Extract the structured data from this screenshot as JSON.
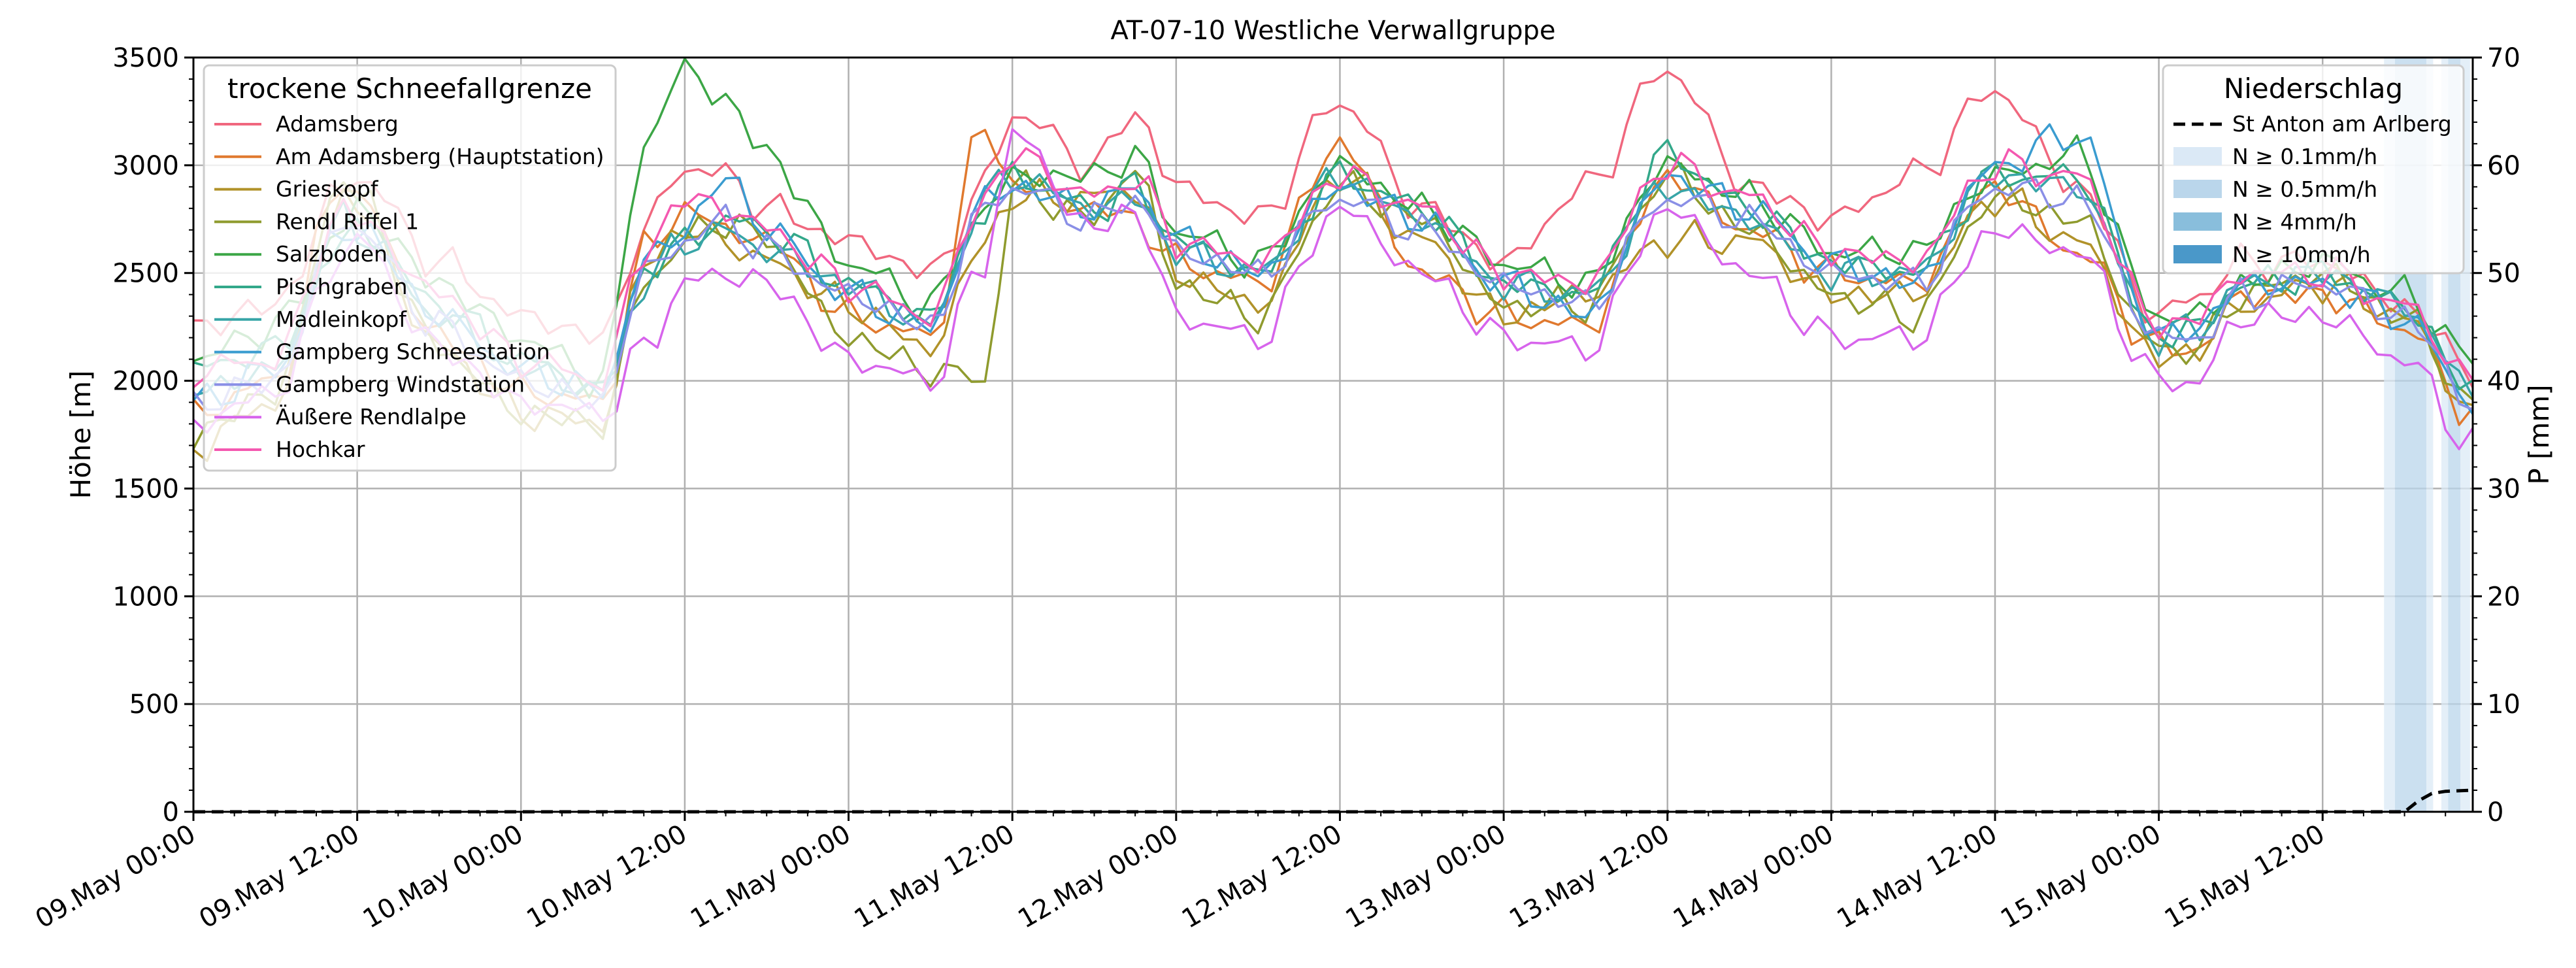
{
  "chart_data": {
    "type": "line",
    "title": "AT-07-10 Westliche Verwallgruppe",
    "ylabel": "Höhe [m]",
    "y2label": "P [mm]",
    "ylim": [
      0,
      3500
    ],
    "y2lim": [
      0,
      70
    ],
    "yticks": [
      0,
      500,
      1000,
      1500,
      2000,
      2500,
      3000,
      3500
    ],
    "y2ticks": [
      0,
      10,
      20,
      30,
      40,
      50,
      60,
      70
    ],
    "xlim_hours": [
      0,
      167
    ],
    "xticks": [
      {
        "h": 0,
        "label": "09.May 00:00"
      },
      {
        "h": 12,
        "label": "09.May 12:00"
      },
      {
        "h": 24,
        "label": "10.May 00:00"
      },
      {
        "h": 36,
        "label": "10.May 12:00"
      },
      {
        "h": 48,
        "label": "11.May 00:00"
      },
      {
        "h": 60,
        "label": "11.May 12:00"
      },
      {
        "h": 72,
        "label": "12.May 00:00"
      },
      {
        "h": 84,
        "label": "12.May 12:00"
      },
      {
        "h": 96,
        "label": "13.May 00:00"
      },
      {
        "h": 108,
        "label": "13.May 12:00"
      },
      {
        "h": 120,
        "label": "14.May 00:00"
      },
      {
        "h": 132,
        "label": "14.May 12:00"
      },
      {
        "h": 144,
        "label": "15.May 00:00"
      },
      {
        "h": 156,
        "label": "15.May 12:00"
      }
    ],
    "grid": true,
    "legend_left": {
      "title": "trockene Schneefallgrenze",
      "placement": "upper-left"
    },
    "legend_right": {
      "title": "Niederschlag",
      "placement": "upper-right",
      "items": [
        {
          "label": "St Anton am Arlberg",
          "style": "dashed",
          "color": "#000000"
        },
        {
          "label": "N ≥ 0.1mm/h",
          "style": "patch",
          "color": "#dbe9f6"
        },
        {
          "label": "N ≥ 0.5mm/h",
          "style": "patch",
          "color": "#bad6eb"
        },
        {
          "label": "N ≥ 4mm/h",
          "style": "patch",
          "color": "#89bedc"
        },
        {
          "label": "N ≥ 10mm/h",
          "style": "patch",
          "color": "#4a98c9"
        }
      ]
    },
    "key_hours": [
      0,
      6,
      11,
      12,
      18,
      24,
      30,
      33,
      36,
      39,
      42,
      48,
      54,
      58,
      60,
      66,
      69,
      72,
      78,
      84,
      90,
      96,
      102,
      108,
      114,
      120,
      126,
      132,
      138,
      144,
      147,
      150,
      156,
      162,
      167
    ],
    "series": [
      {
        "name": "Adamsberg",
        "color": "#f0677e",
        "values": [
          2250,
          2350,
          2900,
          2950,
          2550,
          2300,
          2200,
          2700,
          3000,
          2950,
          2800,
          2650,
          2500,
          2900,
          3250,
          3000,
          3250,
          2900,
          2750,
          3300,
          2800,
          2550,
          2900,
          3450,
          2900,
          2750,
          2950,
          3350,
          2900,
          2300,
          2400,
          2550,
          2550,
          2350,
          2050
        ]
      },
      {
        "name": "Am Adamsberg (Hauptstation)",
        "color": "#e0792e",
        "values": [
          1850,
          2000,
          2950,
          2850,
          2200,
          1950,
          1900,
          2600,
          2800,
          2700,
          2650,
          2300,
          2200,
          3200,
          2900,
          2800,
          2750,
          2550,
          2450,
          3100,
          2500,
          2300,
          2250,
          2950,
          2700,
          2500,
          2450,
          2900,
          2600,
          2150,
          2150,
          2400,
          2400,
          2250,
          1850
        ]
      },
      {
        "name": "Grieskopf",
        "color": "#b19229",
        "values": [
          1700,
          1900,
          2850,
          2800,
          2150,
          1850,
          1800,
          2550,
          2700,
          2650,
          2550,
          2350,
          2150,
          2650,
          2850,
          2850,
          2900,
          2500,
          2350,
          2950,
          2650,
          2300,
          2400,
          2650,
          2650,
          2400,
          2400,
          2850,
          2650,
          2100,
          2150,
          2350,
          2450,
          2300,
          1850
        ]
      },
      {
        "name": "Rendl Riffel 1",
        "color": "#8f9b2e",
        "values": [
          1750,
          1950,
          2950,
          2850,
          2150,
          1850,
          1800,
          2450,
          2650,
          2750,
          2650,
          2200,
          2050,
          2000,
          2900,
          2750,
          3000,
          2450,
          2300,
          2900,
          2750,
          2350,
          2350,
          2950,
          2700,
          2400,
          2300,
          2850,
          2750,
          2150,
          2150,
          2400,
          2500,
          2300,
          1900
        ]
      },
      {
        "name": "Salzboden",
        "color": "#3ca646",
        "values": [
          2100,
          2250,
          2700,
          2800,
          2450,
          2200,
          2000,
          3100,
          3450,
          3300,
          3050,
          2550,
          2350,
          2800,
          2950,
          2950,
          3050,
          2700,
          2550,
          3000,
          2800,
          2550,
          2450,
          3000,
          2850,
          2600,
          2600,
          2950,
          3050,
          2300,
          2300,
          2450,
          2550,
          2400,
          2100
        ]
      },
      {
        "name": "Pischgraben",
        "color": "#33a88a",
        "values": [
          2050,
          2150,
          2650,
          2700,
          2350,
          2100,
          1950,
          2500,
          2650,
          2750,
          2700,
          2450,
          2300,
          2800,
          2950,
          2800,
          2900,
          2650,
          2500,
          2950,
          2800,
          2450,
          2400,
          3050,
          2800,
          2550,
          2500,
          2950,
          2950,
          2200,
          2250,
          2450,
          2500,
          2350,
          1950
        ]
      },
      {
        "name": "Madleinkopf",
        "color": "#37a5a7",
        "values": [
          1950,
          2050,
          2750,
          2700,
          2300,
          2050,
          1950,
          2450,
          2650,
          2700,
          2600,
          2450,
          2250,
          2850,
          2950,
          2800,
          2850,
          2600,
          2500,
          2950,
          2750,
          2450,
          2400,
          2900,
          2750,
          2500,
          2500,
          2950,
          2900,
          2200,
          2250,
          2450,
          2500,
          2350,
          1950
        ]
      },
      {
        "name": "Gampberg Schneestation",
        "color": "#3a9cd0",
        "values": [
          1900,
          2050,
          2700,
          2700,
          2300,
          2050,
          1950,
          2550,
          2700,
          2950,
          2700,
          2400,
          2250,
          2850,
          2900,
          2800,
          2900,
          2650,
          2500,
          2900,
          2750,
          2450,
          2300,
          2950,
          2800,
          2550,
          2450,
          3000,
          3150,
          2200,
          2250,
          2450,
          2450,
          2300,
          1900
        ]
      },
      {
        "name": "Gampberg Windstation",
        "color": "#8a8fe6",
        "values": [
          1900,
          2000,
          2750,
          2700,
          2250,
          2000,
          1900,
          2500,
          2650,
          2750,
          2600,
          2400,
          2250,
          2800,
          2900,
          2750,
          2850,
          2600,
          2500,
          2850,
          2700,
          2450,
          2350,
          2850,
          2750,
          2500,
          2450,
          2900,
          2850,
          2200,
          2200,
          2400,
          2450,
          2300,
          1900
        ]
      },
      {
        "name": "Äußere Rendlalpe",
        "color": "#d764ec",
        "values": [
          1800,
          1950,
          2600,
          2650,
          2150,
          1900,
          1850,
          2150,
          2450,
          2500,
          2450,
          2100,
          2000,
          2550,
          3150,
          2700,
          2800,
          2300,
          2200,
          2800,
          2500,
          2200,
          2150,
          2800,
          2500,
          2200,
          2200,
          2700,
          2600,
          2000,
          2000,
          2300,
          2300,
          2100,
          1700
        ]
      },
      {
        "name": "Hochkar",
        "color": "#f458b0",
        "values": [
          2050,
          2100,
          2800,
          2750,
          2400,
          2100,
          2000,
          2600,
          2850,
          2800,
          2700,
          2450,
          2300,
          2850,
          3050,
          2850,
          2950,
          2650,
          2550,
          2950,
          2800,
          2500,
          2450,
          3000,
          2850,
          2600,
          2550,
          3000,
          2950,
          2250,
          2300,
          2500,
          2500,
          2350,
          2000
        ]
      }
    ],
    "precip_series": {
      "name": "St Anton am Arlberg",
      "unit": "mm",
      "points": [
        [
          0,
          0
        ],
        [
          162,
          0
        ],
        [
          163,
          1
        ],
        [
          164,
          1.7
        ],
        [
          165,
          1.9
        ],
        [
          167,
          2.0
        ]
      ]
    },
    "precip_bands": [
      {
        "from_h": 160.5,
        "to_h": 161.3,
        "level": 1
      },
      {
        "from_h": 161.3,
        "to_h": 163.6,
        "level": 2
      },
      {
        "from_h": 163.6,
        "to_h": 164.1,
        "level": 1
      },
      {
        "from_h": 164.7,
        "to_h": 165.2,
        "level": 1
      },
      {
        "from_h": 165.2,
        "to_h": 166.1,
        "level": 2
      },
      {
        "from_h": 166.1,
        "to_h": 166.8,
        "level": 1
      }
    ]
  }
}
